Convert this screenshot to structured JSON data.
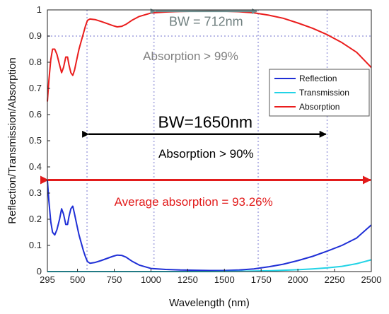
{
  "chart_data": {
    "type": "line",
    "xlabel": "Wavelength (nm)",
    "ylabel": "Reflection/Transmission/Absorption",
    "xlim": [
      295,
      2500
    ],
    "ylim": [
      0,
      1
    ],
    "x_ticks": [
      "295",
      "500",
      "750",
      "1000",
      "1250",
      "1500",
      "1750",
      "2000",
      "2250",
      "2500"
    ],
    "y_ticks": [
      "0",
      "0.1",
      "0.2",
      "0.3",
      "0.4",
      "0.5",
      "0.6",
      "0.7",
      "0.8",
      "0.9",
      "1"
    ],
    "grid": false,
    "legend_position": "top-right",
    "series": [
      {
        "name": "Reflection",
        "color": "#1f2fd6",
        "points": [
          [
            295,
            0.35
          ],
          [
            305,
            0.27
          ],
          [
            318,
            0.19
          ],
          [
            330,
            0.15
          ],
          [
            345,
            0.14
          ],
          [
            360,
            0.16
          ],
          [
            378,
            0.2
          ],
          [
            392,
            0.24
          ],
          [
            405,
            0.22
          ],
          [
            420,
            0.18
          ],
          [
            432,
            0.18
          ],
          [
            442,
            0.21
          ],
          [
            455,
            0.24
          ],
          [
            468,
            0.25
          ],
          [
            480,
            0.22
          ],
          [
            495,
            0.18
          ],
          [
            510,
            0.14
          ],
          [
            525,
            0.11
          ],
          [
            540,
            0.08
          ],
          [
            555,
            0.055
          ],
          [
            568,
            0.038
          ],
          [
            585,
            0.032
          ],
          [
            620,
            0.035
          ],
          [
            660,
            0.042
          ],
          [
            700,
            0.05
          ],
          [
            740,
            0.058
          ],
          [
            770,
            0.063
          ],
          [
            800,
            0.062
          ],
          [
            830,
            0.055
          ],
          [
            870,
            0.04
          ],
          [
            920,
            0.025
          ],
          [
            1000,
            0.012
          ],
          [
            1100,
            0.008
          ],
          [
            1200,
            0.006
          ],
          [
            1300,
            0.005
          ],
          [
            1400,
            0.004
          ],
          [
            1500,
            0.004
          ],
          [
            1600,
            0.006
          ],
          [
            1700,
            0.01
          ],
          [
            1800,
            0.018
          ],
          [
            1900,
            0.028
          ],
          [
            2000,
            0.042
          ],
          [
            2100,
            0.058
          ],
          [
            2200,
            0.078
          ],
          [
            2300,
            0.1
          ],
          [
            2400,
            0.128
          ],
          [
            2500,
            0.178
          ]
        ]
      },
      {
        "name": "Transmission",
        "color": "#22d3e6",
        "points": [
          [
            295,
            0.0
          ],
          [
            1400,
            0.0
          ],
          [
            1600,
            0.001
          ],
          [
            1800,
            0.003
          ],
          [
            2000,
            0.007
          ],
          [
            2100,
            0.01
          ],
          [
            2200,
            0.014
          ],
          [
            2300,
            0.02
          ],
          [
            2400,
            0.03
          ],
          [
            2500,
            0.045
          ]
        ]
      },
      {
        "name": "Absorption",
        "color": "#ea1d1d",
        "points": [
          [
            295,
            0.65
          ],
          [
            305,
            0.73
          ],
          [
            318,
            0.81
          ],
          [
            330,
            0.85
          ],
          [
            345,
            0.85
          ],
          [
            360,
            0.83
          ],
          [
            378,
            0.79
          ],
          [
            392,
            0.76
          ],
          [
            405,
            0.78
          ],
          [
            420,
            0.82
          ],
          [
            432,
            0.82
          ],
          [
            442,
            0.79
          ],
          [
            455,
            0.76
          ],
          [
            468,
            0.75
          ],
          [
            480,
            0.77
          ],
          [
            495,
            0.81
          ],
          [
            510,
            0.85
          ],
          [
            525,
            0.88
          ],
          [
            540,
            0.91
          ],
          [
            555,
            0.94
          ],
          [
            568,
            0.96
          ],
          [
            585,
            0.965
          ],
          [
            620,
            0.963
          ],
          [
            660,
            0.956
          ],
          [
            700,
            0.948
          ],
          [
            740,
            0.94
          ],
          [
            770,
            0.935
          ],
          [
            800,
            0.937
          ],
          [
            830,
            0.945
          ],
          [
            870,
            0.96
          ],
          [
            920,
            0.975
          ],
          [
            1000,
            0.988
          ],
          [
            1100,
            0.992
          ],
          [
            1200,
            0.994
          ],
          [
            1300,
            0.995
          ],
          [
            1400,
            0.996
          ],
          [
            1500,
            0.995
          ],
          [
            1600,
            0.993
          ],
          [
            1700,
            0.989
          ],
          [
            1800,
            0.98
          ],
          [
            1900,
            0.968
          ],
          [
            2000,
            0.95
          ],
          [
            2100,
            0.93
          ],
          [
            2200,
            0.905
          ],
          [
            2300,
            0.875
          ],
          [
            2400,
            0.838
          ],
          [
            2500,
            0.78
          ]
        ]
      }
    ],
    "reference_lines": {
      "horizontal_dotted_y": 0.9,
      "vertical_dotted_x": [
        565,
        1020,
        1730,
        2200
      ],
      "horizontal_solid_y": 0.35
    },
    "annotations": [
      {
        "text": "BW = 712nm",
        "color": "#6f7f7f",
        "arrow_from": 1020,
        "arrow_to": 1730,
        "arrow_y": 0.995,
        "text_x": 1375,
        "text_y": 0.955
      },
      {
        "text": "Absorption > 99%",
        "color": "#7f7f7f",
        "text_x": 1270,
        "text_y": 0.825
      },
      {
        "text": "BW=1650nm",
        "color": "#000000",
        "arrow_from": 565,
        "arrow_to": 2200,
        "arrow_y": 0.525,
        "text_x": 1370,
        "text_y": 0.572
      },
      {
        "text": "Absorption > 90%",
        "color": "#000000",
        "text_x": 1375,
        "text_y": 0.452
      },
      {
        "text": "Average absorption = 93.26%",
        "color": "#e21b1b",
        "arrow_from": 295,
        "arrow_to": 2500,
        "arrow_y": 0.35,
        "text_x": 1290,
        "text_y": 0.268
      }
    ]
  }
}
